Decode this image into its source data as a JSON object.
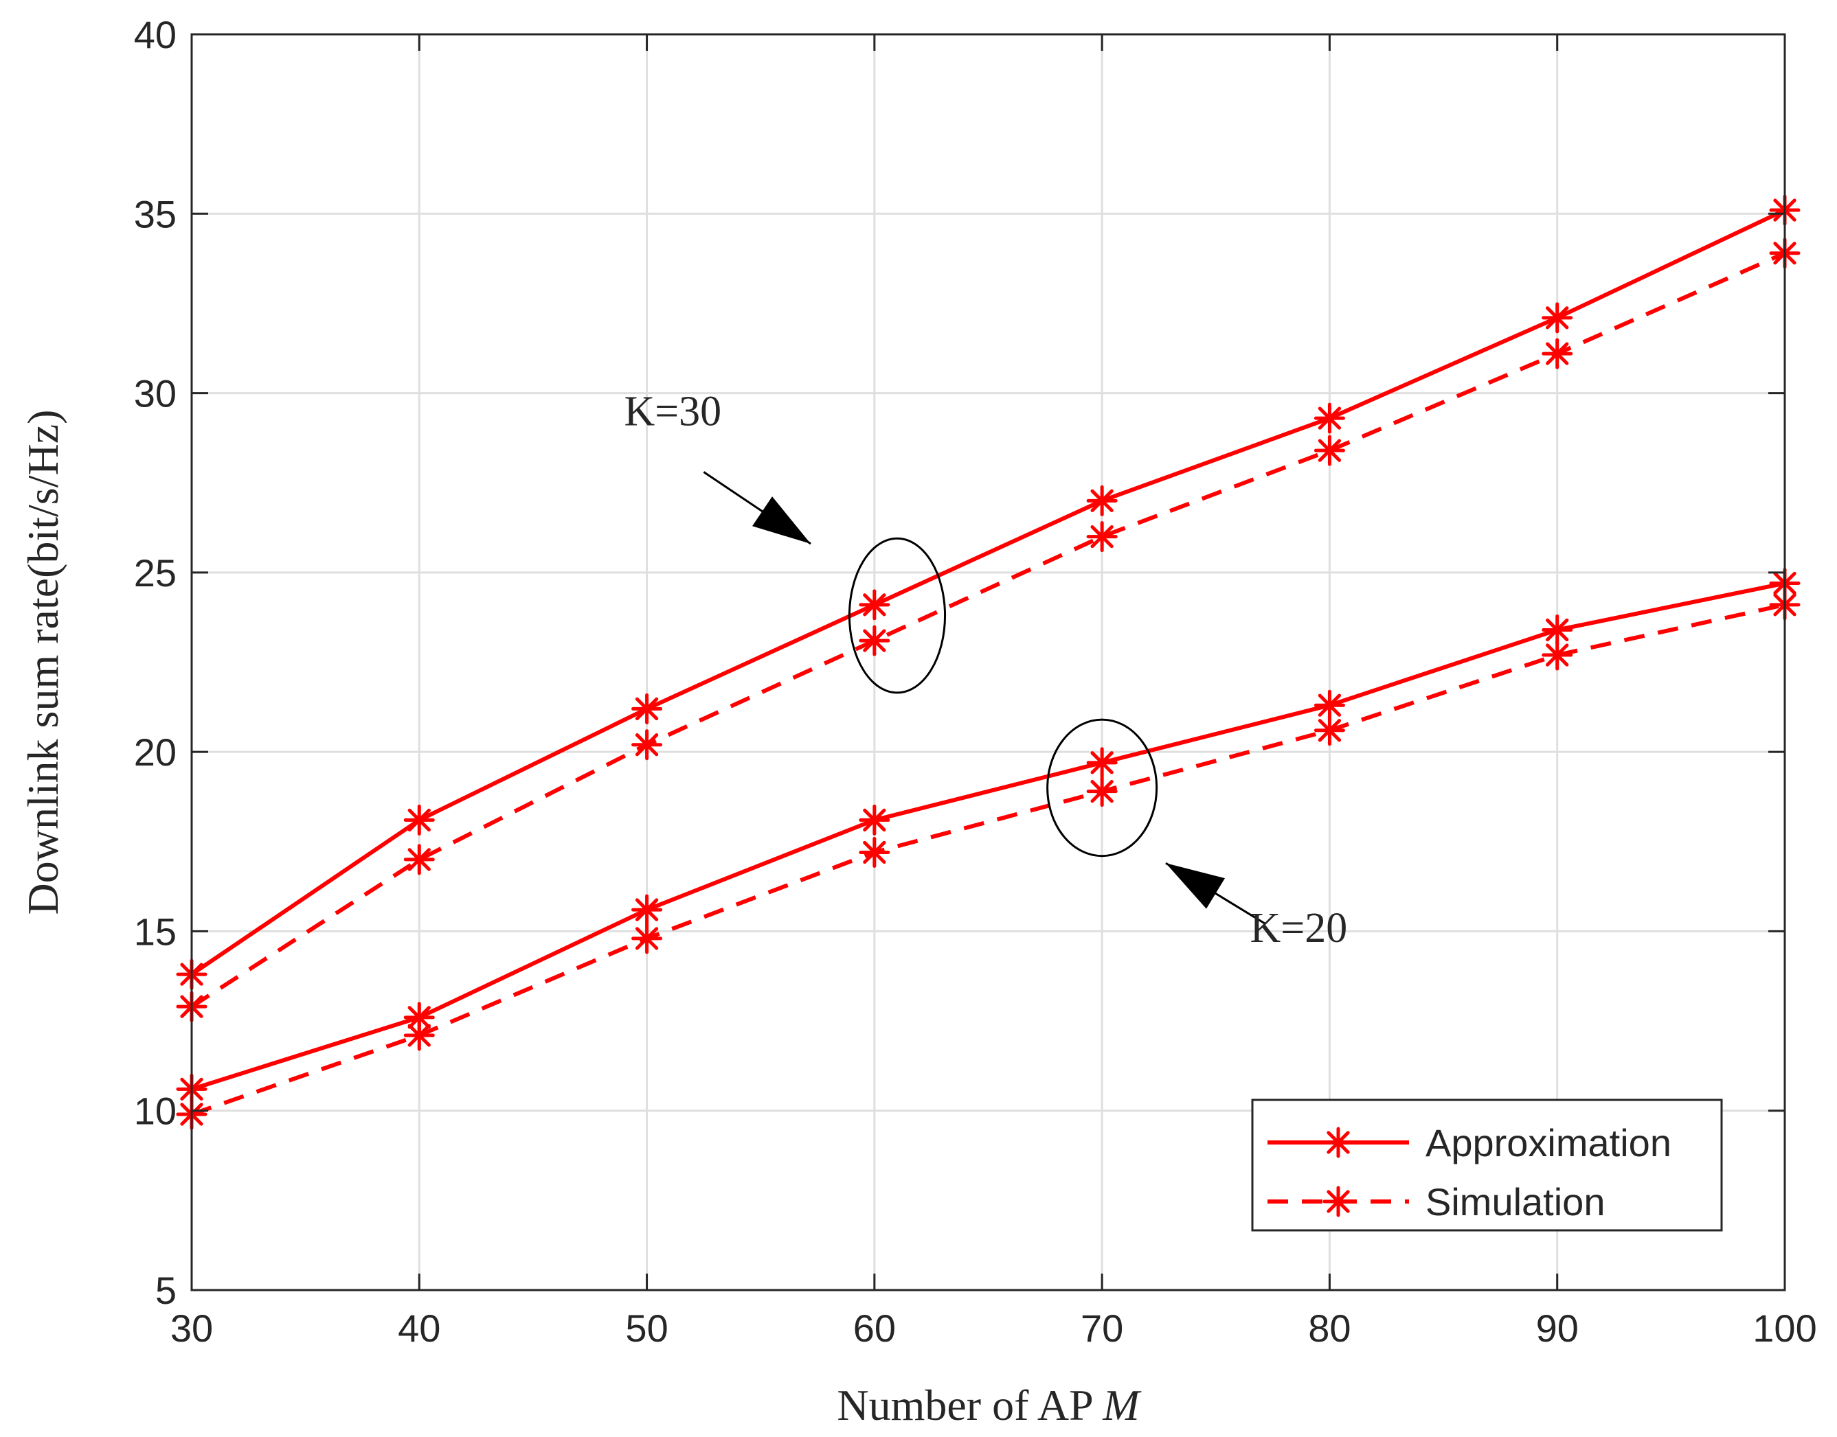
{
  "chart_data": {
    "type": "line",
    "title": "",
    "xlabel": "Number of AP",
    "xlabel_var": "M",
    "ylabel": "Downlink sum rate(bit/s/Hz)",
    "xlim": [
      30,
      100
    ],
    "ylim": [
      5,
      40
    ],
    "xticks": [
      30,
      40,
      50,
      60,
      70,
      80,
      90,
      100
    ],
    "yticks": [
      5,
      10,
      15,
      20,
      25,
      30,
      35,
      40
    ],
    "x": [
      30,
      40,
      50,
      60,
      70,
      80,
      90,
      100
    ],
    "grid": true,
    "legend_position": "bottom-right",
    "legend": [
      {
        "name": "Approximation",
        "style": "solid"
      },
      {
        "name": "Simulation",
        "style": "dashed"
      }
    ],
    "series": [
      {
        "name": "Approximation",
        "group": "K=30",
        "style": "solid",
        "marker": "asterisk",
        "color": "#ff0000",
        "values": [
          13.8,
          18.1,
          21.2,
          24.1,
          27.0,
          29.3,
          32.1,
          35.1
        ]
      },
      {
        "name": "Simulation",
        "group": "K=30",
        "style": "dashed",
        "marker": "asterisk",
        "color": "#ff0000",
        "values": [
          12.9,
          17.0,
          20.2,
          23.1,
          26.0,
          28.4,
          31.1,
          33.9
        ]
      },
      {
        "name": "Approximation",
        "group": "K=20",
        "style": "solid",
        "marker": "asterisk",
        "color": "#ff0000",
        "values": [
          10.6,
          12.6,
          15.6,
          18.1,
          19.7,
          21.3,
          23.4,
          24.7
        ]
      },
      {
        "name": "Simulation",
        "group": "K=20",
        "style": "dashed",
        "marker": "asterisk",
        "color": "#ff0000",
        "values": [
          9.9,
          12.1,
          14.8,
          17.2,
          18.9,
          20.6,
          22.7,
          24.1
        ]
      }
    ],
    "annotations": [
      {
        "text": "K=30",
        "ellipse_center": [
          61,
          23.8
        ],
        "ellipse_radius": [
          2.1,
          2.15
        ],
        "label_at": [
          49,
          29.1
        ],
        "arrow_from": [
          52.5,
          27.8
        ],
        "arrow_to": [
          57.2,
          25.8
        ]
      },
      {
        "text": "K=20",
        "ellipse_center": [
          70,
          19.0
        ],
        "ellipse_radius": [
          2.4,
          1.9
        ],
        "label_at": [
          76.5,
          14.7
        ],
        "arrow_from": [
          77.2,
          15.2
        ],
        "arrow_to": [
          72.8,
          16.9
        ]
      }
    ],
    "colors": {
      "line": "#ff0000",
      "axis": "#262626",
      "grid": "#dfdfdf",
      "annotation": "#000000"
    }
  }
}
